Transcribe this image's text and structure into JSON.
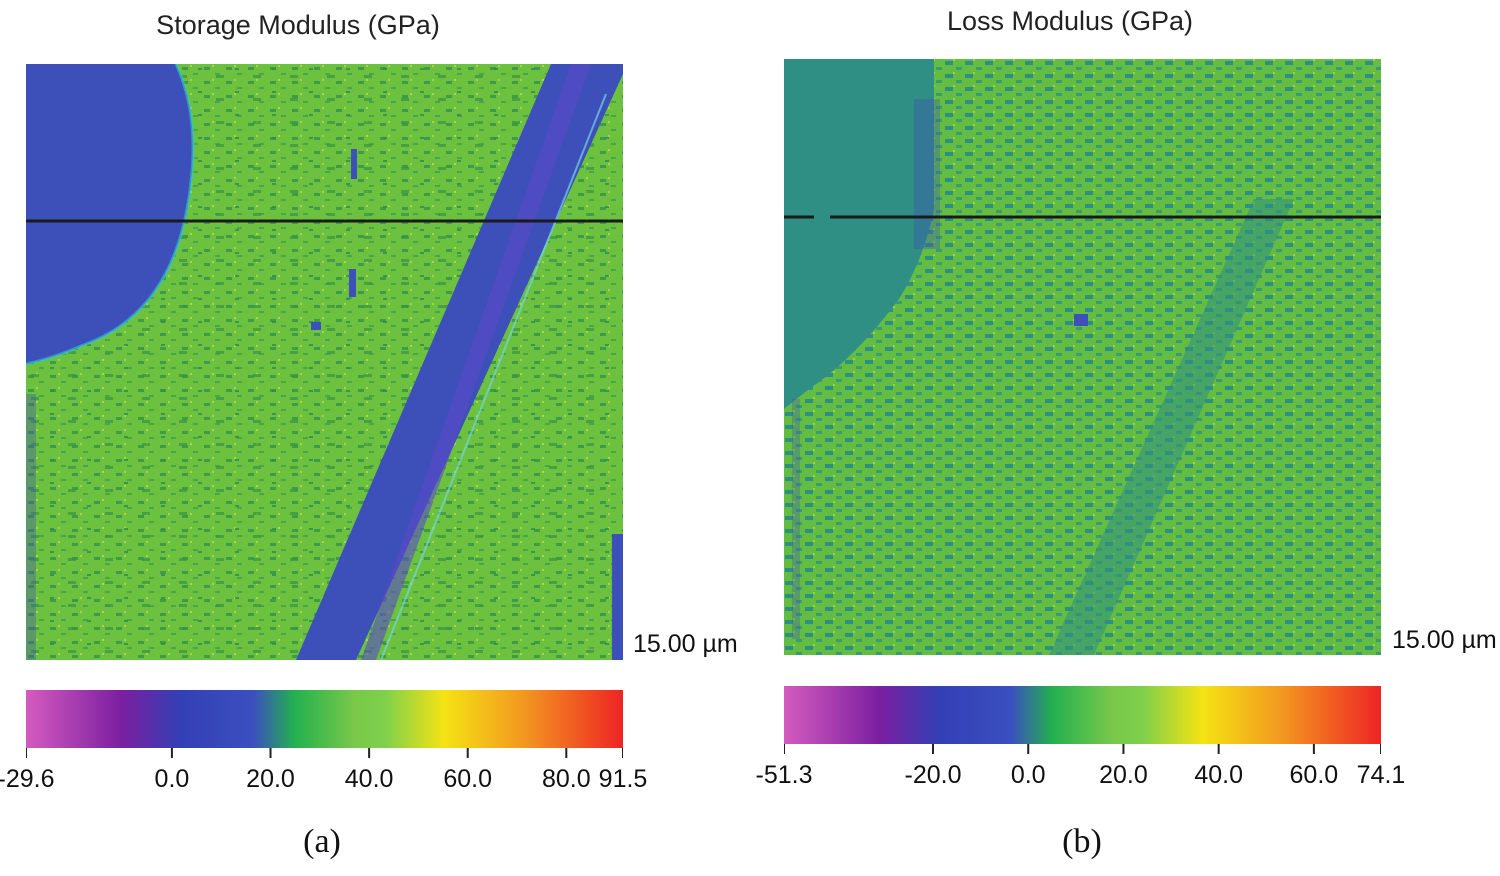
{
  "panels": [
    {
      "id": "a",
      "title": "Storage Modulus (GPa)",
      "scale_label": "15.00 µm",
      "caption": "(a)",
      "colorbar": {
        "min": -29.6,
        "max": 91.5,
        "tick_labels": [
          "-29.6",
          "0.0",
          "20.0",
          "40.0",
          "60.0",
          "80.0",
          "91.5"
        ],
        "tick_values": [
          -29.6,
          0.0,
          20.0,
          40.0,
          60.0,
          80.0,
          91.5
        ]
      }
    },
    {
      "id": "b",
      "title": "Loss Modulus (GPa)",
      "scale_label": "15.00 µm",
      "caption": "(b)",
      "colorbar": {
        "min": -51.3,
        "max": 74.1,
        "tick_labels": [
          "-51.3",
          "-20.0",
          "0.0",
          "20.0",
          "40.0",
          "60.0",
          "74.1"
        ],
        "tick_values": [
          -51.3,
          -20.0,
          0.0,
          20.0,
          40.0,
          60.0,
          74.1
        ]
      }
    }
  ],
  "colors": {
    "green": "#6cc23e",
    "green_dark": "#3f9a4a",
    "blue": "#3d4fb8",
    "teal": "#2f8f84",
    "scan_line": "#1a1a1a",
    "colorbar_stops": [
      "#d45bbf",
      "#7b1fa0",
      "#3340b5",
      "#3b4fc0",
      "#23b14f",
      "#79c84a",
      "#7ed04c",
      "#f4e313",
      "#f39a20",
      "#ee2424"
    ]
  }
}
